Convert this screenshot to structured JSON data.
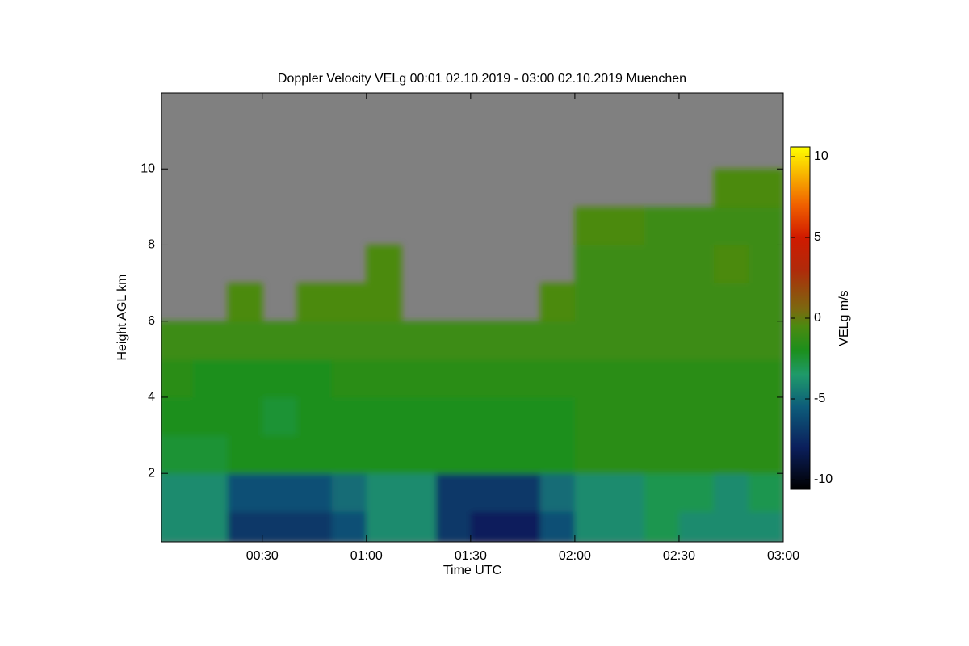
{
  "chart_data": {
    "type": "heatmap",
    "title": "Doppler Velocity VELg   00:01 02.10.2019 - 03:00 02.10.2019 Muenchen",
    "x_label": "Time UTC",
    "y_label": "Height AGL km",
    "colorbar_label": "VELg m/s",
    "xlim": [
      1,
      180
    ],
    "xticks": [
      {
        "value": 30,
        "label": "00:30"
      },
      {
        "value": 60,
        "label": "01:00"
      },
      {
        "value": 90,
        "label": "01:30"
      },
      {
        "value": 120,
        "label": "02:00"
      },
      {
        "value": 150,
        "label": "02:30"
      },
      {
        "value": 180,
        "label": "03:00"
      }
    ],
    "ylim": [
      0.2,
      12.0
    ],
    "yticks": [
      2,
      4,
      6,
      8,
      10
    ],
    "clim": [
      -10.6,
      10.6
    ],
    "cticks": [
      -10,
      -5,
      0,
      5,
      10
    ],
    "background_color": "#808080",
    "colormap": [
      [
        -10.6,
        "#000000"
      ],
      [
        -8,
        "#0b1f5c"
      ],
      [
        -5.5,
        "#0d5c7a"
      ],
      [
        -3.5,
        "#1f9a6a"
      ],
      [
        -2,
        "#1c8f1c"
      ],
      [
        -0.5,
        "#4c8a10"
      ],
      [
        0.5,
        "#7a6a10"
      ],
      [
        3,
        "#b02a0a"
      ],
      [
        5,
        "#d01a00"
      ],
      [
        7,
        "#f06000"
      ],
      [
        10.6,
        "#ffff00"
      ]
    ],
    "x_edges": [
      0,
      10,
      20,
      30,
      40,
      50,
      60,
      70,
      80,
      90,
      100,
      110,
      120,
      130,
      140,
      150,
      160,
      170,
      180
    ],
    "y_edges": [
      0.2,
      1,
      2,
      3,
      4,
      5,
      6,
      7,
      8,
      9,
      10,
      11,
      12
    ],
    "z": [
      [
        -4,
        -4,
        -7,
        -7,
        -7,
        -6,
        -4,
        -4,
        -7,
        -8,
        -8,
        -6,
        -4,
        -4,
        -3,
        -4,
        -4,
        -4
      ],
      [
        -4,
        -4,
        -6,
        -6,
        -6,
        -5,
        -4,
        -4,
        -7,
        -7,
        -7,
        -5,
        -4,
        -4,
        -3,
        -3,
        -4,
        -3
      ],
      [
        -2.5,
        -2.5,
        -2,
        -2,
        -2,
        -2,
        -2,
        -2,
        -2,
        -2,
        -2,
        -2,
        -1.5,
        -1.5,
        -1.5,
        -1.5,
        -1.5,
        -1.5
      ],
      [
        -2,
        -2,
        -2,
        -2.5,
        -2,
        -2,
        -2,
        -2,
        -2,
        -2,
        -2,
        -2,
        -1.5,
        -1.5,
        -1.5,
        -1.5,
        -1.5,
        -1.5
      ],
      [
        -1.5,
        -2,
        -2,
        -2,
        -2,
        -1.5,
        -1.5,
        -1.5,
        -1.5,
        -1.5,
        -1.5,
        -1.5,
        -1.5,
        -1.5,
        -1.5,
        -1.5,
        -1.5,
        -1.5
      ],
      [
        -1,
        -1,
        -1,
        -1,
        -1,
        -1,
        -1,
        -1,
        -1,
        -1,
        -1,
        -1,
        -1,
        -1,
        -1,
        -1,
        -1,
        -1
      ],
      [
        null,
        null,
        -0.5,
        null,
        -0.5,
        -0.5,
        -0.5,
        null,
        null,
        null,
        null,
        -0.5,
        -1,
        -1,
        -1,
        -1,
        -1,
        -1
      ],
      [
        null,
        null,
        null,
        null,
        null,
        null,
        -0.5,
        null,
        null,
        null,
        null,
        null,
        -1,
        -1,
        -1,
        -1,
        -0.5,
        -1
      ],
      [
        null,
        null,
        null,
        null,
        null,
        null,
        null,
        null,
        null,
        null,
        null,
        null,
        -0.5,
        -0.5,
        -1,
        -1,
        -1,
        -1
      ],
      [
        null,
        null,
        null,
        null,
        null,
        null,
        null,
        null,
        null,
        null,
        null,
        null,
        null,
        null,
        null,
        null,
        -0.5,
        -0.5
      ],
      [
        null,
        null,
        null,
        null,
        null,
        null,
        null,
        null,
        null,
        null,
        null,
        null,
        null,
        null,
        null,
        null,
        null,
        null
      ],
      [
        null,
        null,
        null,
        null,
        null,
        null,
        null,
        null,
        null,
        null,
        null,
        null,
        null,
        null,
        null,
        null,
        null,
        null
      ]
    ]
  }
}
